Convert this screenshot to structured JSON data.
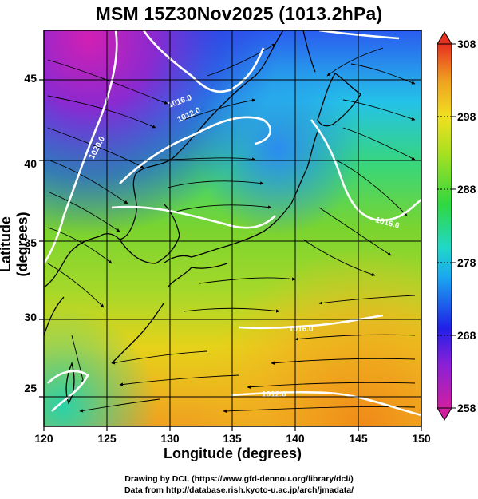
{
  "title": "MSM 15Z30Nov2025 (1013.2hPa)",
  "x_axis": {
    "label": "Longitude (degrees)",
    "ticks": [
      "120",
      "125",
      "130",
      "135",
      "140",
      "145",
      "150"
    ]
  },
  "y_axis": {
    "label": "Latitude  (degrees)",
    "ticks": [
      "25",
      "30",
      "35",
      "40",
      "45"
    ]
  },
  "colorbar": {
    "ticks": [
      "308",
      "298",
      "288",
      "278",
      "268",
      "258"
    ],
    "min": 258,
    "max": 308
  },
  "contours": [
    "1020.0",
    "1016.0",
    "1012.0",
    "1016.0",
    "1016.0",
    "1016.0",
    "1012.0"
  ],
  "credits": {
    "line1": "Drawing by DCL (https://www.gfd-dennou.org/library/dcl/)",
    "line2": "Data from http://database.rish.kyoto-u.ac.jp/arch/jmadata/"
  },
  "map": {
    "lon_range": [
      120,
      150
    ],
    "lat_range": [
      23,
      48
    ]
  }
}
